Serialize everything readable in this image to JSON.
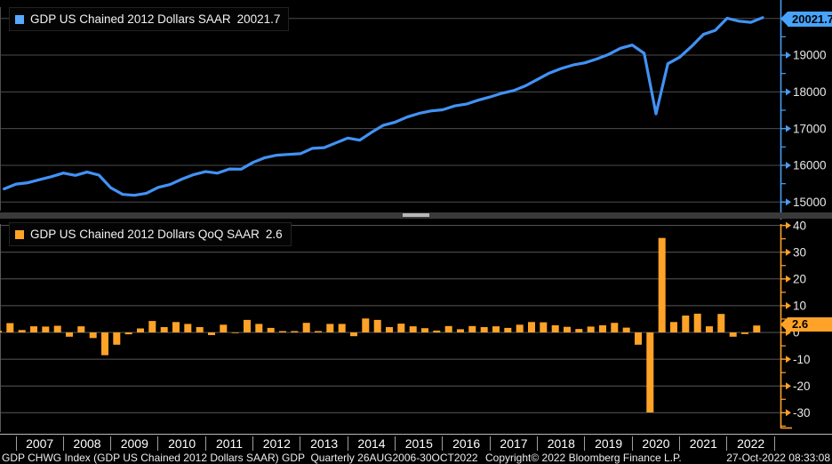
{
  "legend_top": {
    "label": "GDP US Chained 2012 Dollars SAAR",
    "value": "20021.7"
  },
  "legend_bottom": {
    "label": "GDP US Chained 2012 Dollars QoQ SAAR",
    "value": "2.6"
  },
  "axis_badges": {
    "top": "20021.7",
    "bottom": "2.6"
  },
  "x_axis": {
    "years": [
      "2007",
      "2008",
      "2009",
      "2010",
      "2011",
      "2012",
      "2013",
      "2014",
      "2015",
      "2016",
      "2017",
      "2018",
      "2019",
      "2020",
      "2021",
      "2022"
    ]
  },
  "footer": {
    "left": "GDP CHWG Index (GDP US Chained 2012 Dollars SAAR) GDP  Quarterly 26AUG2006-30OCT2022",
    "center": "Copyright© 2022 Bloomberg Finance L.P.",
    "right": "27-Oct-2022 08:33:08"
  },
  "colors": {
    "blue_line": "#4292f5",
    "blue_swatch": "#58a9ff",
    "blue_badge": "#47a3fc",
    "blue_axis": "#4a9df5",
    "orange": "#ffa228",
    "grid_top": "#4d4d4d",
    "grid_bottom": "#585858",
    "text": "#e8e8e8",
    "background": "#000000"
  },
  "chart_data": [
    {
      "type": "line",
      "title": "GDP US Chained 2012 Dollars SAAR",
      "frequency": "Quarterly",
      "period": "26AUG2006-30OCT2022",
      "x_start": "2006 Q3",
      "x_end": "2022 Q3",
      "last_value": 20021.7,
      "ylim": [
        14760,
        20340
      ],
      "yticks": [
        19000,
        18000,
        17000,
        16000,
        15000
      ],
      "ygrid": [
        20000,
        19000,
        18000,
        17000,
        16000,
        15000
      ],
      "yticks_minor": [
        20500,
        19500,
        18500,
        17500,
        16500,
        15500
      ],
      "legend_position": "top-left",
      "values": [
        15357,
        15488,
        15524,
        15609,
        15693,
        15790,
        15727,
        15816,
        15733,
        15388,
        15209,
        15183,
        15239,
        15400,
        15476,
        15624,
        15748,
        15827,
        15787,
        15900,
        15896,
        16080,
        16207,
        16276,
        16296,
        16317,
        16461,
        16482,
        16611,
        16743,
        16685,
        16897,
        17091,
        17175,
        17314,
        17412,
        17481,
        17512,
        17616,
        17668,
        17773,
        17860,
        17962,
        18037,
        18166,
        18340,
        18512,
        18635,
        18731,
        18791,
        18894,
        19020,
        19188,
        19274,
        19050,
        17400,
        18766,
        18946,
        19237,
        19564,
        19675,
        20004,
        19924,
        19894,
        20021.7
      ]
    },
    {
      "type": "bar",
      "title": "GDP US Chained 2012 Dollars QoQ SAAR",
      "frequency": "Quarterly",
      "x_start": "2006 Q3",
      "x_end": "2022 Q3",
      "last_value": 2.6,
      "ylim": [
        -37,
        40.5
      ],
      "yticks": [
        40,
        30,
        20,
        10,
        0,
        -10,
        -20,
        -30
      ],
      "ygrid": [
        40,
        30,
        20,
        10,
        0,
        -10,
        -20,
        -30
      ],
      "yticks_minor": [
        35,
        25,
        15,
        5,
        -5,
        -15,
        -25,
        -35
      ],
      "legend_position": "top-left",
      "values": [
        0.6,
        3.5,
        0.9,
        2.3,
        2.2,
        2.5,
        -1.6,
        2.3,
        -2.1,
        -8.5,
        -4.6,
        -0.7,
        1.5,
        4.3,
        2.0,
        3.9,
        3.2,
        2.0,
        -1.0,
        2.9,
        -0.1,
        4.7,
        3.2,
        1.7,
        0.5,
        0.5,
        3.6,
        0.5,
        3.2,
        3.2,
        -1.4,
        5.2,
        4.7,
        2.0,
        3.3,
        2.3,
        1.6,
        0.7,
        2.4,
        1.2,
        2.4,
        2.0,
        2.3,
        1.7,
        2.9,
        3.9,
        3.8,
        2.7,
        2.1,
        1.3,
        2.2,
        2.7,
        3.6,
        1.8,
        -4.6,
        -29.9,
        35.3,
        3.9,
        6.3,
        7.0,
        2.3,
        6.9,
        -1.6,
        -0.6,
        2.6
      ]
    }
  ]
}
